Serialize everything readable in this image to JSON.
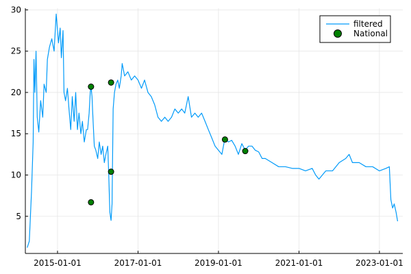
{
  "chart_data": {
    "type": "line",
    "title": "",
    "xlabel": "",
    "ylabel": "",
    "xlim": [
      "2014-03-15",
      "2023-08-01"
    ],
    "ylim": [
      0.5,
      30.2
    ],
    "grid": true,
    "x_ticks": [
      "2015-01-01",
      "2017-01-01",
      "2019-01-01",
      "2021-01-01",
      "2023-01-01"
    ],
    "y_ticks": [
      5,
      10,
      15,
      20,
      25,
      30
    ],
    "legend_position": "top-right",
    "colors": {
      "line": "#009af9",
      "scatter": "#008000",
      "grid": "#e6e6e6",
      "axis": "#000000"
    },
    "series": [
      {
        "name": "filtered",
        "kind": "line",
        "points": [
          [
            "2014-04-01",
            1.2
          ],
          [
            "2014-04-20",
            2.0
          ],
          [
            "2014-05-10",
            8.0
          ],
          [
            "2014-05-25",
            14.0
          ],
          [
            "2014-06-01",
            24.0
          ],
          [
            "2014-06-10",
            20.0
          ],
          [
            "2014-06-20",
            25.0
          ],
          [
            "2014-07-01",
            17.0
          ],
          [
            "2014-07-15",
            15.2
          ],
          [
            "2014-08-01",
            19.0
          ],
          [
            "2014-08-20",
            17.0
          ],
          [
            "2014-09-01",
            21.0
          ],
          [
            "2014-09-20",
            20.0
          ],
          [
            "2014-10-01",
            24.0
          ],
          [
            "2014-10-20",
            25.5
          ],
          [
            "2014-11-10",
            26.5
          ],
          [
            "2014-12-01",
            25.0
          ],
          [
            "2014-12-20",
            29.5
          ],
          [
            "2015-01-10",
            26.0
          ],
          [
            "2015-01-25",
            27.8
          ],
          [
            "2015-02-05",
            24.2
          ],
          [
            "2015-02-20",
            27.5
          ],
          [
            "2015-03-01",
            20.0
          ],
          [
            "2015-03-15",
            19.0
          ],
          [
            "2015-04-01",
            20.5
          ],
          [
            "2015-04-15",
            18.0
          ],
          [
            "2015-05-01",
            15.5
          ],
          [
            "2015-05-15",
            19.5
          ],
          [
            "2015-06-01",
            16.5
          ],
          [
            "2015-06-15",
            20.0
          ],
          [
            "2015-07-01",
            15.5
          ],
          [
            "2015-07-15",
            17.5
          ],
          [
            "2015-08-01",
            15.0
          ],
          [
            "2015-08-15",
            16.5
          ],
          [
            "2015-09-01",
            14.0
          ],
          [
            "2015-09-20",
            15.5
          ],
          [
            "2015-10-01",
            15.5
          ],
          [
            "2015-10-15",
            17.5
          ],
          [
            "2015-10-25",
            20.0
          ],
          [
            "2015-11-01",
            20.7
          ],
          [
            "2015-11-10",
            19.5
          ],
          [
            "2015-11-20",
            16.5
          ],
          [
            "2015-12-01",
            13.5
          ],
          [
            "2015-12-15",
            13.0
          ],
          [
            "2016-01-01",
            12.0
          ],
          [
            "2016-01-15",
            14.0
          ],
          [
            "2016-02-01",
            12.5
          ],
          [
            "2016-02-15",
            13.5
          ],
          [
            "2016-03-01",
            11.5
          ],
          [
            "2016-03-15",
            12.5
          ],
          [
            "2016-04-01",
            13.5
          ],
          [
            "2016-04-10",
            10.0
          ],
          [
            "2016-04-20",
            5.5
          ],
          [
            "2016-05-01",
            4.5
          ],
          [
            "2016-05-10",
            6.5
          ],
          [
            "2016-05-20",
            18.0
          ],
          [
            "2016-06-01",
            20.0
          ],
          [
            "2016-06-15",
            21.0
          ],
          [
            "2016-07-01",
            21.5
          ],
          [
            "2016-07-15",
            20.5
          ],
          [
            "2016-08-01",
            22.0
          ],
          [
            "2016-08-10",
            23.5
          ],
          [
            "2016-09-01",
            22.0
          ],
          [
            "2016-10-01",
            22.5
          ],
          [
            "2016-11-01",
            21.5
          ],
          [
            "2016-12-01",
            22.0
          ],
          [
            "2017-01-01",
            21.5
          ],
          [
            "2017-02-01",
            20.5
          ],
          [
            "2017-03-01",
            21.5
          ],
          [
            "2017-04-01",
            20.0
          ],
          [
            "2017-05-01",
            19.5
          ],
          [
            "2017-06-01",
            18.5
          ],
          [
            "2017-07-01",
            17.0
          ],
          [
            "2017-08-01",
            16.5
          ],
          [
            "2017-09-01",
            17.0
          ],
          [
            "2017-10-01",
            16.5
          ],
          [
            "2017-11-01",
            17.0
          ],
          [
            "2017-12-01",
            18.0
          ],
          [
            "2018-01-01",
            17.5
          ],
          [
            "2018-02-01",
            18.0
          ],
          [
            "2018-03-01",
            17.5
          ],
          [
            "2018-04-01",
            19.5
          ],
          [
            "2018-05-01",
            17.0
          ],
          [
            "2018-06-01",
            17.5
          ],
          [
            "2018-07-01",
            17.0
          ],
          [
            "2018-08-01",
            17.5
          ],
          [
            "2018-09-01",
            16.5
          ],
          [
            "2018-10-01",
            15.5
          ],
          [
            "2018-11-01",
            14.5
          ],
          [
            "2018-12-01",
            13.5
          ],
          [
            "2019-01-01",
            13.0
          ],
          [
            "2019-02-01",
            12.5
          ],
          [
            "2019-03-01",
            14.5
          ],
          [
            "2019-04-01",
            14.0
          ],
          [
            "2019-05-01",
            14.2
          ],
          [
            "2019-06-01",
            13.5
          ],
          [
            "2019-07-01",
            12.5
          ],
          [
            "2019-08-01",
            13.8
          ],
          [
            "2019-09-01",
            13.0
          ],
          [
            "2019-10-01",
            13.5
          ],
          [
            "2019-11-01",
            13.5
          ],
          [
            "2019-12-01",
            13.0
          ],
          [
            "2020-01-01",
            12.8
          ],
          [
            "2020-02-01",
            12.0
          ],
          [
            "2020-03-01",
            12.0
          ],
          [
            "2020-05-01",
            11.5
          ],
          [
            "2020-07-01",
            11.0
          ],
          [
            "2020-09-01",
            11.0
          ],
          [
            "2020-11-01",
            10.8
          ],
          [
            "2021-01-01",
            10.8
          ],
          [
            "2021-03-01",
            10.5
          ],
          [
            "2021-05-01",
            10.8
          ],
          [
            "2021-06-01",
            10.0
          ],
          [
            "2021-07-01",
            9.5
          ],
          [
            "2021-08-01",
            10.0
          ],
          [
            "2021-09-01",
            10.5
          ],
          [
            "2021-11-01",
            10.5
          ],
          [
            "2022-01-01",
            11.5
          ],
          [
            "2022-03-01",
            12.0
          ],
          [
            "2022-04-01",
            12.5
          ],
          [
            "2022-05-01",
            11.5
          ],
          [
            "2022-07-01",
            11.5
          ],
          [
            "2022-09-01",
            11.0
          ],
          [
            "2022-11-01",
            11.0
          ],
          [
            "2023-01-01",
            10.5
          ],
          [
            "2023-03-01",
            10.8
          ],
          [
            "2023-04-01",
            11.0
          ],
          [
            "2023-04-15",
            7.0
          ],
          [
            "2023-05-01",
            6.0
          ],
          [
            "2023-05-15",
            6.5
          ],
          [
            "2023-06-01",
            5.5
          ],
          [
            "2023-06-15",
            4.4
          ]
        ]
      },
      {
        "name": "National",
        "kind": "scatter",
        "points": [
          [
            "2015-11-01",
            20.7
          ],
          [
            "2015-11-01",
            6.7
          ],
          [
            "2016-05-01",
            21.2
          ],
          [
            "2016-05-01",
            10.4
          ],
          [
            "2019-03-01",
            14.3
          ],
          [
            "2019-09-01",
            12.9
          ]
        ]
      }
    ]
  }
}
